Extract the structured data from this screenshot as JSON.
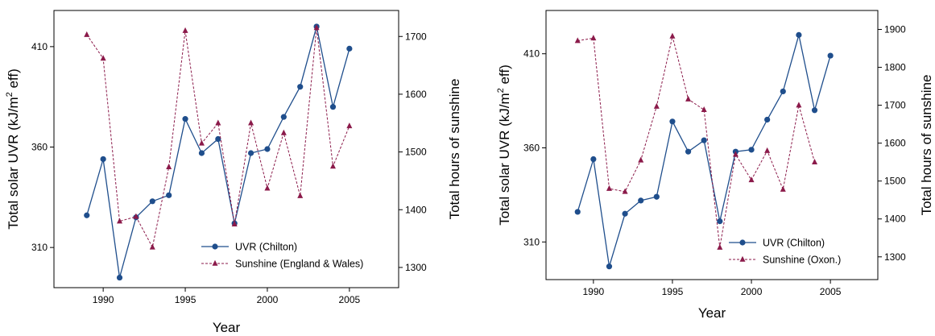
{
  "chart_data": [
    {
      "type": "line",
      "xlabel": "Year",
      "ylabel_left": "Total solar  UVR  (kJ/m",
      "ylabel_left_sup": "2",
      "ylabel_left_tail": "  eff)",
      "ylabel_right": "Total hours of sunshine",
      "xlim": [
        1987,
        2008
      ],
      "xticks": [
        "1990",
        "1995",
        "2000",
        "2005"
      ],
      "ylim_left": [
        290,
        428
      ],
      "yticks_left": [
        "310",
        "360",
        "410"
      ],
      "ylim_right": [
        1265,
        1745
      ],
      "yticks_right": [
        "1300",
        "1400",
        "1500",
        "1600",
        "1700"
      ],
      "legend_position": "bottom-right",
      "series": [
        {
          "name": "UVR (Chilton)",
          "axis": "left",
          "color": "#1f4e8c",
          "marker": "circle",
          "line": "solid",
          "x": [
            1989,
            1990,
            1991,
            1992,
            1993,
            1994,
            1995,
            1996,
            1997,
            1998,
            1999,
            2000,
            2001,
            2002,
            2003,
            2004,
            2005
          ],
          "values": [
            326,
            354,
            295,
            325,
            333,
            336,
            374,
            357,
            364,
            322,
            357,
            359,
            375,
            390,
            420,
            380,
            409
          ]
        },
        {
          "name": "Sunshine (England & Wales)",
          "axis": "right",
          "color": "#8b1a4a",
          "marker": "triangle",
          "line": "dashed",
          "x": [
            1989,
            1990,
            1991,
            1992,
            1993,
            1994,
            1995,
            1996,
            1997,
            1998,
            1999,
            2000,
            2001,
            2002,
            2003,
            2004,
            2005
          ],
          "values": [
            1703,
            1662,
            1380,
            1388,
            1335,
            1474,
            1710,
            1515,
            1550,
            1375,
            1550,
            1437,
            1533,
            1424,
            1715,
            1475,
            1545
          ]
        }
      ]
    },
    {
      "type": "line",
      "xlabel": "Year",
      "ylabel_left": "Total solar  UVR  (kJ/m",
      "ylabel_left_sup": "2",
      "ylabel_left_tail": "  eff)",
      "ylabel_right": "Total hours of sunshine",
      "xlim": [
        1987,
        2008
      ],
      "xticks": [
        "1990",
        "1995",
        "2000",
        "2005"
      ],
      "ylim_left": [
        290,
        433
      ],
      "yticks_left": [
        "310",
        "360",
        "410"
      ],
      "ylim_right": [
        1240,
        1950
      ],
      "yticks_right": [
        "1300",
        "1400",
        "1500",
        "1600",
        "1700",
        "1800",
        "1900"
      ],
      "legend_position": "bottom-right",
      "series": [
        {
          "name": "UVR (Chilton)",
          "axis": "left",
          "color": "#1f4e8c",
          "marker": "circle",
          "line": "solid",
          "x": [
            1989,
            1990,
            1991,
            1992,
            1993,
            1994,
            1995,
            1996,
            1997,
            1998,
            1999,
            2000,
            2001,
            2002,
            2003,
            2004,
            2005
          ],
          "values": [
            326,
            354,
            297,
            325,
            332,
            334,
            374,
            358,
            364,
            321,
            358,
            359,
            375,
            390,
            420,
            380,
            409
          ]
        },
        {
          "name": "Sunshine (Oxon.)",
          "axis": "right",
          "color": "#8b1a4a",
          "marker": "triangle",
          "line": "dashed",
          "x": [
            1989,
            1990,
            1991,
            1992,
            1993,
            1994,
            1995,
            1996,
            1997,
            1998,
            1999,
            2000,
            2001,
            2002,
            2003,
            2004
          ],
          "values": [
            1870,
            1877,
            1480,
            1472,
            1555,
            1697,
            1882,
            1716,
            1688,
            1325,
            1570,
            1503,
            1580,
            1478,
            1700,
            1550
          ]
        }
      ]
    }
  ]
}
